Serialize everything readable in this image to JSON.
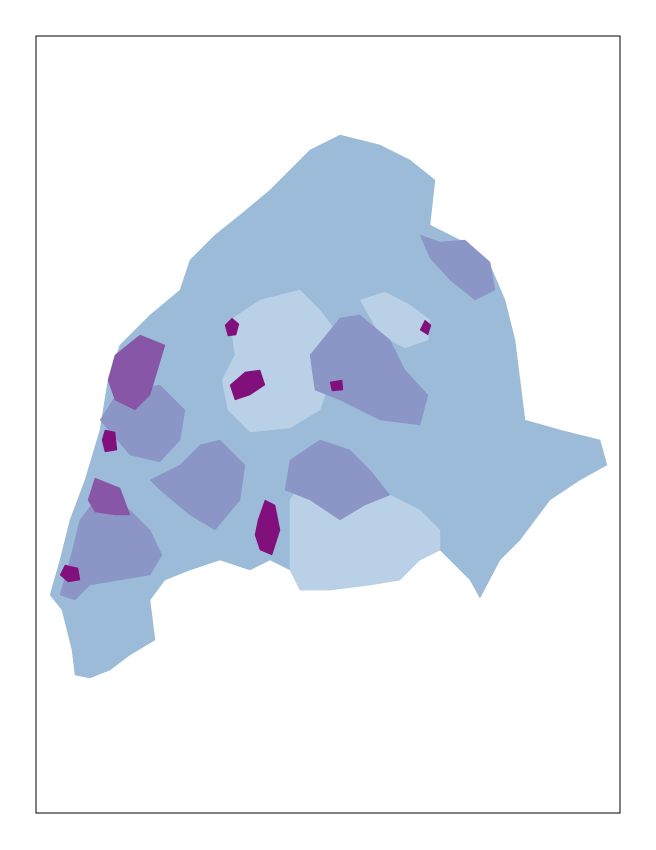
{
  "map": {
    "colors": [
      "#9bbbd9",
      "#b9d0e6",
      "#8c96c6",
      "#8856a7",
      "#810f7c"
    ]
  }
}
